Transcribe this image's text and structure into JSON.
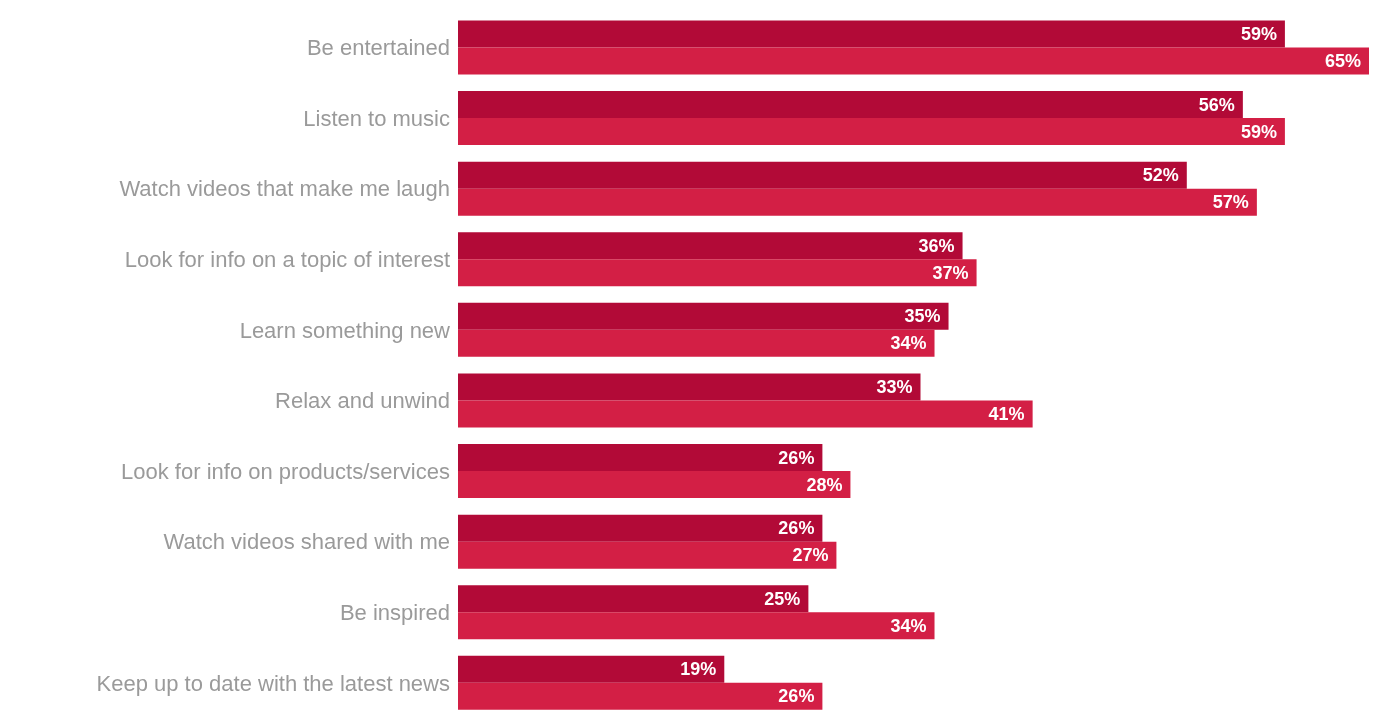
{
  "chart_data": {
    "type": "bar",
    "orientation": "horizontal",
    "categories": [
      "Be entertained",
      "Listen to music",
      "Watch videos that make me laugh",
      "Look for info on a topic of interest",
      "Learn something new",
      "Relax and unwind",
      "Look for info on products/services",
      "Watch videos shared with me",
      "Be inspired",
      "Keep up to date with the latest news"
    ],
    "series": [
      {
        "color": "#b20a37",
        "values": [
          59,
          56,
          52,
          36,
          35,
          33,
          26,
          26,
          25,
          19
        ],
        "value_labels": [
          "59%",
          "56%",
          "52%",
          "36%",
          "35%",
          "33%",
          "26%",
          "26%",
          "25%",
          "19%"
        ]
      },
      {
        "color": "#d31f45",
        "values": [
          65,
          59,
          57,
          37,
          34,
          41,
          28,
          27,
          34,
          26
        ],
        "value_labels": [
          "65%",
          "59%",
          "57%",
          "37%",
          "34%",
          "41%",
          "28%",
          "27%",
          "34%",
          "26%"
        ]
      }
    ],
    "grid": false,
    "legend": false
  }
}
